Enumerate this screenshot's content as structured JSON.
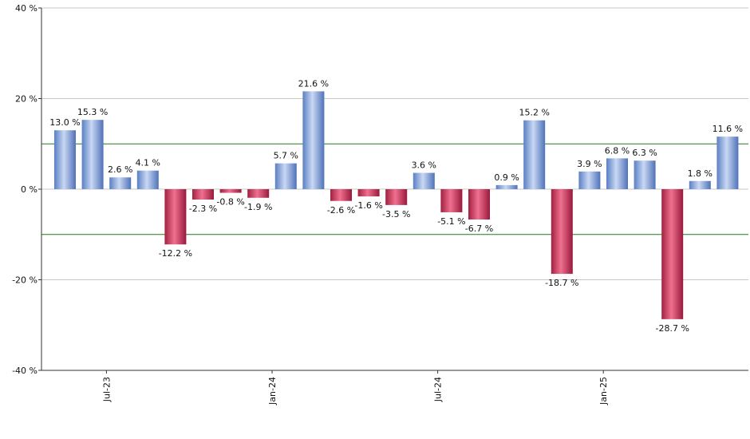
{
  "chart_data": {
    "type": "bar",
    "values": [
      13.0,
      15.3,
      2.6,
      4.1,
      -12.2,
      -2.3,
      -0.8,
      -1.9,
      5.7,
      21.6,
      -2.6,
      -1.6,
      -3.5,
      3.6,
      -5.1,
      -6.7,
      0.9,
      15.2,
      -18.7,
      3.9,
      6.8,
      6.3,
      -28.7,
      1.8,
      11.6
    ],
    "data_labels": [
      "13.0 %",
      "15.3 %",
      "2.6 %",
      "4.1 %",
      "-12.2 %",
      "-2.3 %",
      "-0.8 %",
      "-1.9 %",
      "5.7 %",
      "21.6 %",
      "-2.6 %",
      "-1.6 %",
      "-3.5 %",
      "3.6 %",
      "-5.1 %",
      "-6.7 %",
      "0.9 %",
      "15.2 %",
      "-18.7 %",
      "3.9 %",
      "6.8 %",
      "6.3 %",
      "-28.7 %",
      "1.8 %",
      "11.6 %"
    ],
    "ylim": [
      -40,
      40
    ],
    "yticks": [
      40,
      20,
      0,
      -20,
      -40
    ],
    "ytick_labels": [
      "40 %",
      "20 %",
      "0 %",
      "-20 %",
      "-40 %"
    ],
    "xtick_labels": [
      "Jul-23",
      "Jan-24",
      "Jul-24",
      "Jan-25"
    ],
    "xtick_bar_index": [
      1.5,
      7.5,
      13.5,
      19.5
    ],
    "reference_lines": [
      10,
      -10
    ],
    "grid": true,
    "colors": {
      "positive": "#6f93d6",
      "negative": "#c8365a",
      "reference_line": "#1f7a1f",
      "grid": "#c8c8c8",
      "axis": "#333333"
    }
  }
}
